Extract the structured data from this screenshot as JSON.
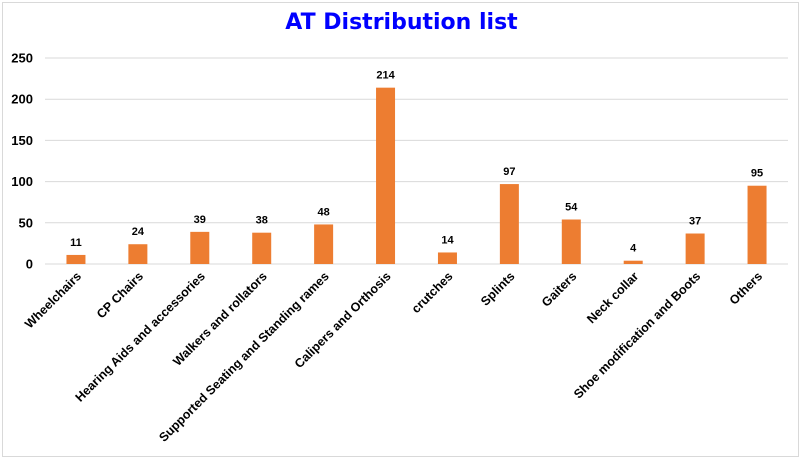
{
  "chart_data": {
    "type": "bar",
    "title": "AT Distribution list",
    "xlabel": "",
    "ylabel": "",
    "ylim": [
      0,
      250
    ],
    "yticks": [
      0,
      50,
      100,
      150,
      200,
      250
    ],
    "grid": true,
    "legend": "none",
    "categories": [
      "Wheelchairs",
      "CP Chairs",
      "Hearing Aids and accessories",
      "Walkers and rollators",
      "Supported Seating and Standing rames",
      "Calipers and Orthosis",
      "crutches",
      "Splints",
      "Gaiters",
      "Neck collar",
      "Shoe modification and Boots",
      "Others"
    ],
    "values": [
      11,
      24,
      39,
      38,
      48,
      214,
      14,
      97,
      54,
      4,
      37,
      95
    ],
    "bar_color": "#ed7d31",
    "title_color": "#0000ff",
    "grid_color": "#d9d9d9"
  }
}
